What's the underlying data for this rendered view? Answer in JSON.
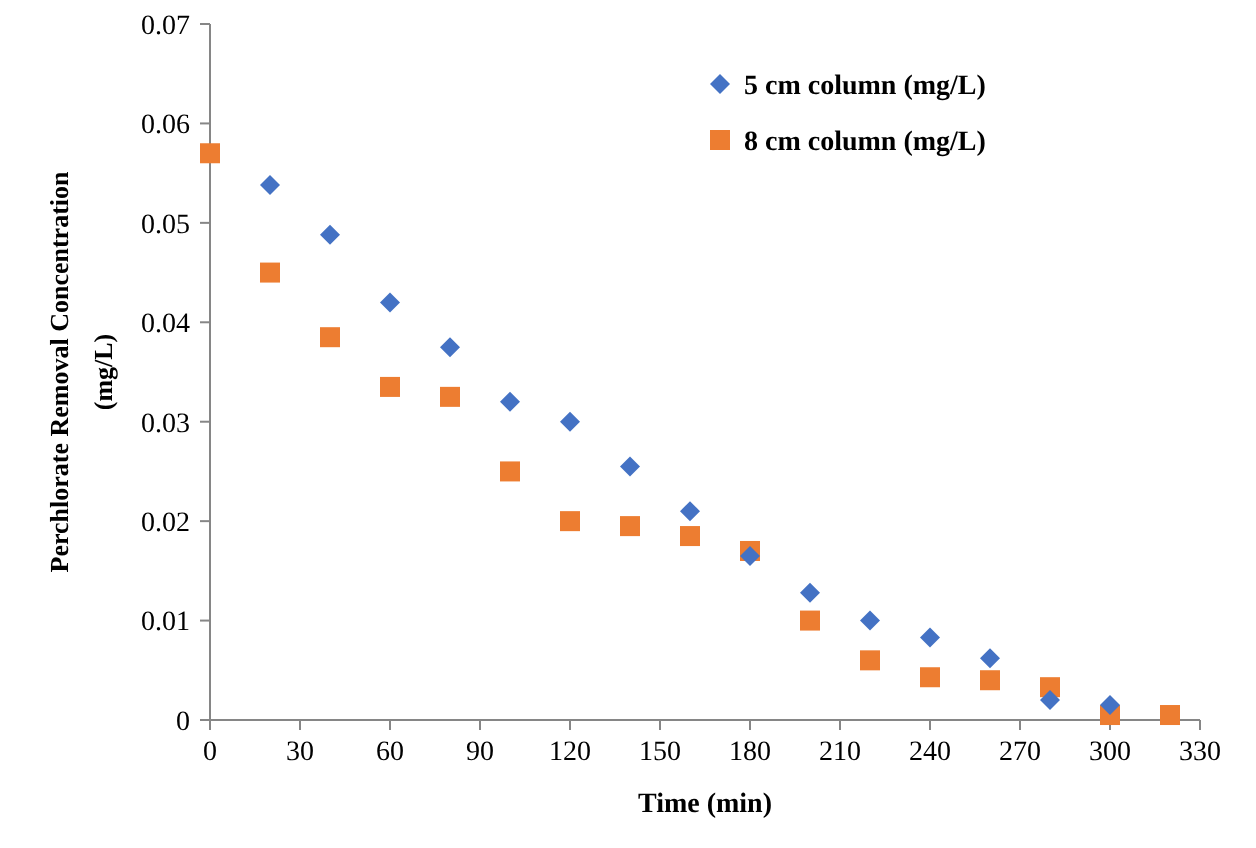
{
  "chart_data": {
    "type": "scatter",
    "xlabel": "Time (min)",
    "ylabel": "Perchlorate Removal Concentration (mg/L)",
    "xlim": [
      0,
      330
    ],
    "xticks": [
      0,
      30,
      60,
      90,
      120,
      150,
      180,
      210,
      240,
      270,
      300,
      330
    ],
    "ylim": [
      0,
      0.07
    ],
    "yticks": [
      {
        "value": 0,
        "label": "0"
      },
      0.01,
      0.02,
      0.03,
      0.04,
      0.05,
      0.06,
      0.07
    ],
    "grid": false,
    "legend": "top right",
    "series": [
      {
        "name": "5 cm column (mg/L)",
        "color": "#4472c4",
        "marker": "diamond",
        "x": [
          20,
          40,
          60,
          80,
          100,
          120,
          140,
          160,
          180,
          200,
          220,
          240,
          260,
          280,
          300
        ],
        "values": [
          0.0538,
          0.0488,
          0.042,
          0.0375,
          0.032,
          0.03,
          0.0255,
          0.021,
          0.0165,
          0.0128,
          0.01,
          0.0083,
          0.0062,
          0.002,
          0.0015
        ]
      },
      {
        "name": "8 cm column (mg/L)",
        "color": "#ed7d31",
        "marker": "square",
        "x": [
          0,
          20,
          40,
          60,
          80,
          100,
          120,
          140,
          160,
          180,
          200,
          220,
          240,
          260,
          280,
          300,
          320
        ],
        "values": [
          0.057,
          0.045,
          0.0385,
          0.0335,
          0.0325,
          0.025,
          0.02,
          0.0195,
          0.0185,
          0.017,
          0.01,
          0.006,
          0.0043,
          0.004,
          0.0033,
          0.0005,
          0.0005
        ]
      }
    ]
  }
}
